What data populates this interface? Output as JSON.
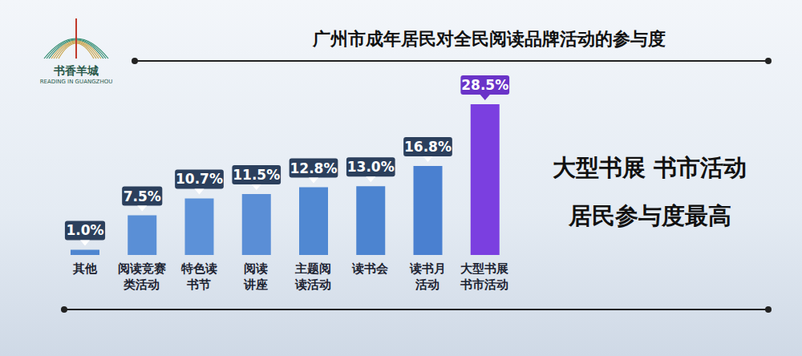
{
  "logo": {
    "title": "书香羊城",
    "subtitle": "READING IN GUANGZHOU"
  },
  "chart_data": {
    "type": "bar",
    "title": "广州市成年居民对全民阅读品牌活动的参与度",
    "categories": [
      "其他",
      "阅读竞赛类活动",
      "特色读书节",
      "阅读讲座",
      "主题阅读活动",
      "读书会",
      "读书月活动",
      "大型书展书市活动"
    ],
    "values": [
      1.0,
      7.5,
      10.7,
      11.5,
      12.8,
      13.0,
      16.8,
      28.5
    ],
    "value_labels": [
      "1.0%",
      "7.5%",
      "10.7%",
      "11.5%",
      "12.8%",
      "13.0%",
      "16.8%",
      "28.5%"
    ],
    "colors": [
      "#4f86d0",
      "#5a8fd6",
      "#5c91d8",
      "#5a8ed6",
      "#5088d2",
      "#4c84d0",
      "#4a80d0",
      "#7b3fe0"
    ],
    "ylim": [
      0,
      30
    ],
    "data_labels": true,
    "tick_labels": "x",
    "annotations": [
      "大型书展 书市活动",
      "居民参与度最高"
    ]
  }
}
